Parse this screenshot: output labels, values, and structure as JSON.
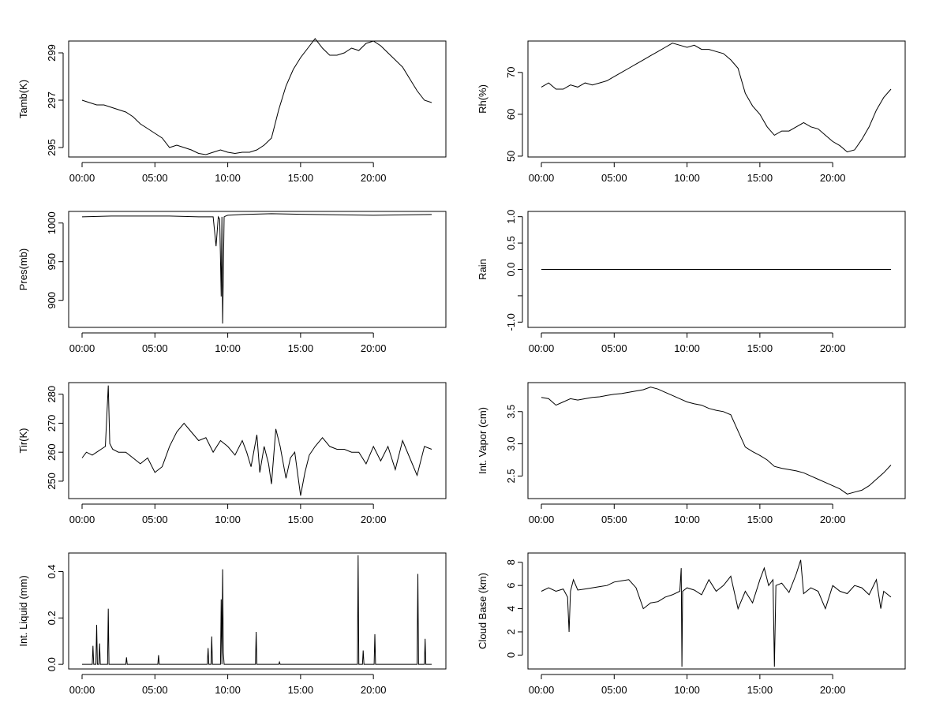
{
  "chart_data": [
    {
      "id": "tamb",
      "type": "line",
      "ylabel": "Tamb(K)",
      "xticks": [
        "00:00",
        "05:00",
        "10:00",
        "15:00",
        "20:00"
      ],
      "xlim": [
        0,
        24
      ],
      "ylim": [
        294.6,
        299.5
      ],
      "yticks": [
        295,
        297,
        299
      ],
      "ytick_labels": [
        "295",
        "297",
        "299"
      ],
      "series": [
        {
          "x": [
            0,
            0.5,
            1,
            1.5,
            2,
            2.5,
            3,
            3.5,
            4,
            4.5,
            5,
            5.5,
            6,
            6.5,
            7,
            7.5,
            8,
            8.5,
            9,
            9.5,
            10,
            10.5,
            11,
            11.5,
            12,
            12.5,
            13,
            13.5,
            14,
            14.5,
            15,
            15.5,
            16,
            16.5,
            17,
            17.5,
            18,
            18.5,
            19,
            19.5,
            20,
            20.5,
            21,
            21.5,
            22,
            22.5,
            23,
            23.5,
            24
          ],
          "y": [
            297.0,
            296.9,
            296.8,
            296.8,
            296.7,
            296.6,
            296.5,
            296.3,
            296.0,
            295.8,
            295.6,
            295.4,
            295.0,
            295.1,
            295.0,
            294.9,
            294.75,
            294.7,
            294.8,
            294.9,
            294.8,
            294.75,
            294.8,
            294.8,
            294.9,
            295.1,
            295.4,
            296.6,
            297.6,
            298.3,
            298.8,
            299.2,
            299.6,
            299.2,
            298.9,
            298.9,
            299.0,
            299.2,
            299.1,
            299.4,
            299.5,
            299.3,
            299.0,
            298.7,
            298.4,
            297.9,
            297.4,
            297.0,
            296.9
          ]
        }
      ]
    },
    {
      "id": "rh",
      "type": "line",
      "ylabel": "Rh(%)",
      "xticks": [
        "00:00",
        "05:00",
        "10:00",
        "15:00",
        "20:00"
      ],
      "xlim": [
        0,
        24
      ],
      "ylim": [
        49.8,
        77.5
      ],
      "yticks": [
        50,
        60,
        70
      ],
      "ytick_labels": [
        "50",
        "60",
        "70"
      ],
      "series": [
        {
          "x": [
            0,
            0.5,
            1,
            1.5,
            2,
            2.5,
            3,
            3.5,
            4,
            4.5,
            5,
            5.5,
            6,
            6.5,
            7,
            7.5,
            8,
            8.5,
            9,
            9.5,
            10,
            10.5,
            11,
            11.5,
            12,
            12.5,
            13,
            13.5,
            14,
            14.5,
            15,
            15.5,
            16,
            16.5,
            17,
            17.5,
            18,
            18.5,
            19,
            19.5,
            20,
            20.5,
            21,
            21.5,
            22,
            22.5,
            23,
            23.5,
            24
          ],
          "y": [
            66.5,
            67.5,
            66.0,
            66.0,
            67.0,
            66.5,
            67.5,
            67.0,
            67.5,
            68.0,
            69.0,
            70.0,
            71.0,
            72.0,
            73.0,
            74.0,
            75.0,
            76.0,
            77.0,
            76.5,
            76.0,
            76.5,
            75.5,
            75.5,
            75.0,
            74.5,
            73.0,
            71.0,
            65.0,
            62.0,
            60.0,
            57.0,
            55.0,
            56.0,
            56.0,
            57.0,
            58.0,
            57.0,
            56.5,
            55.0,
            53.5,
            52.5,
            51.0,
            51.5,
            54.0,
            57.0,
            61.0,
            64.0,
            66.0
          ]
        }
      ]
    },
    {
      "id": "pres",
      "type": "line",
      "ylabel": "Pres(mb)",
      "xticks": [
        "00:00",
        "05:00",
        "10:00",
        "15:00",
        "20:00"
      ],
      "xlim": [
        0,
        24
      ],
      "ylim": [
        865,
        1015
      ],
      "yticks": [
        900,
        950,
        1000
      ],
      "ytick_labels": [
        "900",
        "950",
        "1000"
      ],
      "series": [
        {
          "x": [
            0,
            2,
            4,
            6,
            8,
            9.0,
            9.2,
            9.35,
            9.45,
            9.55,
            9.6,
            9.65,
            9.75,
            9.85,
            10.0,
            11,
            13,
            16,
            20,
            24
          ],
          "y": [
            1008,
            1009,
            1009,
            1009,
            1008,
            1008,
            970,
            1008,
            1005,
            905,
            1008,
            870,
            1008,
            1009,
            1010,
            1011,
            1012,
            1011,
            1010,
            1011
          ]
        }
      ]
    },
    {
      "id": "rain",
      "type": "line",
      "ylabel": "Rain",
      "xticks": [
        "00:00",
        "05:00",
        "10:00",
        "15:00",
        "20:00"
      ],
      "xlim": [
        0,
        24
      ],
      "ylim": [
        -1.1,
        1.1
      ],
      "yticks": [
        -1.0,
        -0.5,
        0.0,
        0.5,
        1.0
      ],
      "ytick_labels": [
        "-1.0",
        "",
        "0.0",
        "0.5",
        "1.0"
      ],
      "series": [
        {
          "x": [
            0,
            24
          ],
          "y": [
            0,
            0
          ]
        }
      ]
    },
    {
      "id": "tir",
      "type": "line",
      "ylabel": "Tir(K)",
      "xticks": [
        "00:00",
        "05:00",
        "10:00",
        "15:00",
        "20:00"
      ],
      "xlim": [
        0,
        24
      ],
      "ylim": [
        244,
        284
      ],
      "yticks": [
        250,
        260,
        270,
        280
      ],
      "ytick_labels": [
        "250",
        "260",
        "270",
        "280"
      ],
      "series": [
        {
          "x": [
            0,
            0.3,
            0.7,
            1,
            1.3,
            1.6,
            1.8,
            1.9,
            2.1,
            2.5,
            3,
            3.5,
            4,
            4.5,
            5,
            5.5,
            6,
            6.5,
            7,
            7.5,
            8,
            8.5,
            9,
            9.5,
            10,
            10.5,
            11,
            11.3,
            11.6,
            12,
            12.2,
            12.5,
            12.8,
            13,
            13.3,
            13.6,
            14,
            14.3,
            14.6,
            15,
            15.3,
            15.6,
            16,
            16.5,
            17,
            17.5,
            18,
            18.5,
            19,
            19.5,
            20,
            20.5,
            21,
            21.5,
            22,
            22.5,
            23,
            23.5,
            24
          ],
          "y": [
            258,
            260,
            259,
            260,
            261,
            262,
            283,
            263,
            261,
            260,
            260,
            258,
            256,
            258,
            253,
            255,
            262,
            267,
            270,
            267,
            264,
            265,
            260,
            264,
            262,
            259,
            264,
            260,
            255,
            266,
            253,
            262,
            256,
            249,
            268,
            262,
            251,
            258,
            260,
            245,
            253,
            259,
            262,
            265,
            262,
            261,
            261,
            260,
            260,
            256,
            262,
            257,
            262,
            254,
            264,
            258,
            252,
            262,
            261
          ]
        }
      ]
    },
    {
      "id": "vapor",
      "type": "line",
      "ylabel": "Int. Vapor (cm)",
      "xticks": [
        "00:00",
        "05:00",
        "10:00",
        "15:00",
        "20:00"
      ],
      "xlim": [
        0,
        24
      ],
      "ylim": [
        2.15,
        3.95
      ],
      "yticks": [
        2.5,
        3.0,
        3.5
      ],
      "ytick_labels": [
        "2.5",
        "3.0",
        "3.5"
      ],
      "series": [
        {
          "x": [
            0,
            0.5,
            1,
            1.5,
            2,
            2.5,
            3,
            3.5,
            4,
            4.5,
            5,
            5.5,
            6,
            6.5,
            7,
            7.5,
            8,
            8.5,
            9,
            9.5,
            10,
            10.5,
            11,
            11.5,
            12,
            12.5,
            13,
            13.5,
            14,
            14.5,
            15,
            15.5,
            16,
            16.5,
            17,
            17.5,
            18,
            18.5,
            19,
            19.5,
            20,
            20.5,
            21,
            21.5,
            22,
            22.5,
            23,
            23.5,
            24
          ],
          "y": [
            3.72,
            3.7,
            3.6,
            3.65,
            3.7,
            3.68,
            3.7,
            3.72,
            3.73,
            3.75,
            3.77,
            3.78,
            3.8,
            3.82,
            3.84,
            3.88,
            3.85,
            3.8,
            3.75,
            3.7,
            3.65,
            3.62,
            3.6,
            3.55,
            3.52,
            3.5,
            3.45,
            3.2,
            2.95,
            2.88,
            2.82,
            2.75,
            2.65,
            2.62,
            2.6,
            2.58,
            2.55,
            2.5,
            2.45,
            2.4,
            2.35,
            2.3,
            2.22,
            2.25,
            2.28,
            2.35,
            2.45,
            2.55,
            2.67
          ]
        }
      ]
    },
    {
      "id": "liquid",
      "type": "line",
      "ylabel": "Int. Liquid (mm)",
      "xticks": [
        "00:00",
        "05:00",
        "10:00",
        "15:00",
        "20:00"
      ],
      "xlim": [
        0,
        24
      ],
      "ylim": [
        -0.02,
        0.48
      ],
      "yticks": [
        0.0,
        0.2,
        0.4
      ],
      "ytick_labels": [
        "0.0",
        "0.2",
        "0.4"
      ],
      "series": [
        {
          "x": [
            0,
            0.7,
            0.75,
            0.8,
            0.95,
            1.0,
            1.05,
            1.15,
            1.2,
            1.25,
            1.75,
            1.8,
            1.85,
            3.0,
            3.05,
            3.1,
            5.2,
            5.25,
            5.3,
            8.6,
            8.65,
            8.7,
            8.85,
            8.9,
            8.95,
            9.5,
            9.55,
            9.6,
            9.65,
            9.7,
            9.75,
            11.9,
            11.95,
            12.0,
            13.5,
            13.55,
            13.6,
            18.9,
            18.95,
            19.0,
            19.25,
            19.3,
            19.35,
            20.05,
            20.1,
            20.15,
            23.0,
            23.05,
            23.1,
            23.5,
            23.55,
            23.6,
            24
          ],
          "y": [
            0,
            0,
            0.08,
            0,
            0,
            0.17,
            0,
            0,
            0.09,
            0,
            0,
            0.24,
            0,
            0,
            0.03,
            0,
            0,
            0.04,
            0,
            0,
            0.07,
            0,
            0,
            0.12,
            0,
            0,
            0.28,
            0,
            0.41,
            0.05,
            0,
            0,
            0.14,
            0,
            0,
            0.01,
            0,
            0,
            0.47,
            0,
            0,
            0.06,
            0,
            0,
            0.13,
            0,
            0,
            0.39,
            0,
            0,
            0.11,
            0,
            0
          ]
        }
      ]
    },
    {
      "id": "cloudbase",
      "type": "line",
      "ylabel": "Cloud Base (km)",
      "xticks": [
        "00:00",
        "05:00",
        "10:00",
        "15:00",
        "20:00"
      ],
      "xlim": [
        0,
        24
      ],
      "ylim": [
        -1.2,
        8.8
      ],
      "yticks": [
        0,
        2,
        4,
        6,
        8
      ],
      "ytick_labels": [
        "0",
        "2",
        "4",
        "6",
        "8"
      ],
      "series": [
        {
          "x": [
            0,
            0.5,
            1,
            1.5,
            1.8,
            1.9,
            2.0,
            2.2,
            2.5,
            3,
            3.5,
            4,
            4.5,
            5,
            5.5,
            6,
            6.5,
            7,
            7.5,
            8,
            8.5,
            9,
            9.5,
            9.6,
            9.65,
            9.7,
            10,
            10.5,
            11,
            11.5,
            12,
            12.5,
            13,
            13.5,
            14,
            14.5,
            15,
            15.3,
            15.6,
            15.9,
            16.0,
            16.1,
            16.5,
            17,
            17.5,
            17.8,
            18,
            18.5,
            19,
            19.5,
            20,
            20.5,
            21,
            21.5,
            22,
            22.5,
            23,
            23.3,
            23.5,
            24
          ],
          "y": [
            5.5,
            5.8,
            5.5,
            5.7,
            5.0,
            2.0,
            5.5,
            6.5,
            5.6,
            5.7,
            5.8,
            5.9,
            6.0,
            6.3,
            6.4,
            6.5,
            5.8,
            4.0,
            4.5,
            4.6,
            5.0,
            5.2,
            5.5,
            7.5,
            -1.0,
            5.5,
            5.8,
            5.6,
            5.2,
            6.5,
            5.5,
            6.0,
            6.8,
            4.0,
            5.5,
            4.5,
            6.5,
            7.5,
            6.0,
            6.5,
            -1.0,
            6.0,
            6.2,
            5.4,
            7.0,
            8.2,
            5.3,
            5.8,
            5.5,
            4.0,
            6.0,
            5.5,
            5.3,
            6.0,
            5.8,
            5.2,
            6.5,
            4.0,
            5.5,
            5.0
          ]
        }
      ]
    }
  ]
}
